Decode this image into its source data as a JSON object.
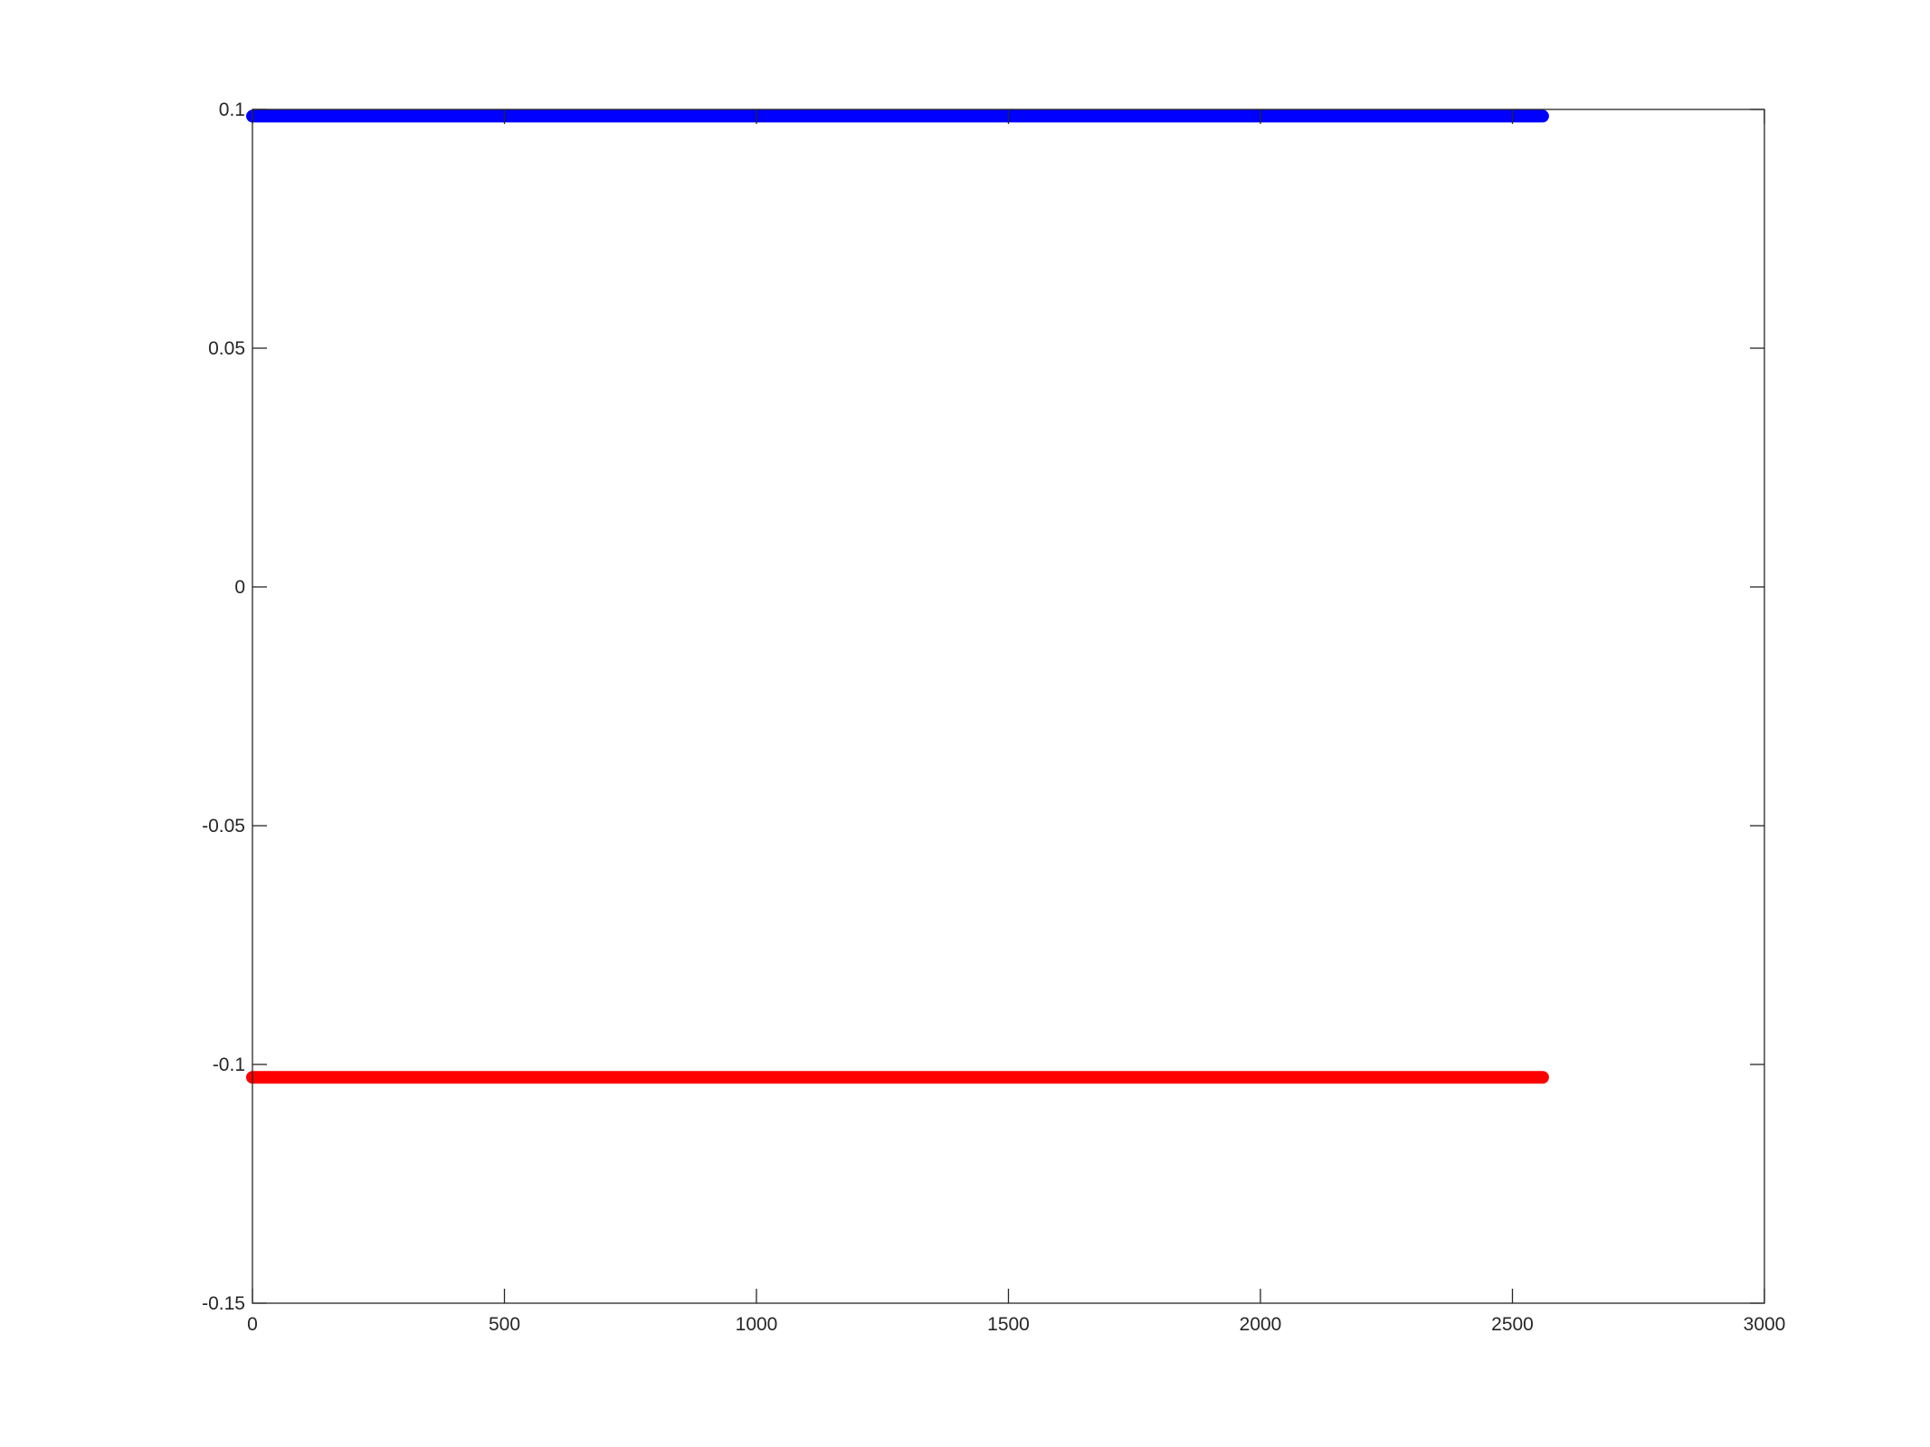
{
  "chart_data": {
    "type": "scatter",
    "title": "",
    "xlabel": "",
    "ylabel": "",
    "xlim": [
      0,
      3000
    ],
    "ylim": [
      -0.15,
      0.1
    ],
    "xticks": [
      0,
      500,
      1000,
      1500,
      2000,
      2500,
      3000
    ],
    "xtick_labels": [
      "0",
      "500",
      "1000",
      "1500",
      "2000",
      "2500",
      "3000"
    ],
    "yticks": [
      0.1,
      0.05,
      0,
      -0.05,
      -0.1,
      -0.15
    ],
    "ytick_labels": [
      "0.1",
      "0.05",
      "0",
      "-0.05",
      "-0.1",
      "-0.15"
    ],
    "grid": false,
    "legend": "none",
    "series": [
      {
        "color": "#0000ff",
        "x_start": 0,
        "x_end": 2560,
        "y": 0.0986
      },
      {
        "color": "#ff0000",
        "x_start": 0,
        "x_end": 2560,
        "y": -0.1027
      }
    ]
  }
}
